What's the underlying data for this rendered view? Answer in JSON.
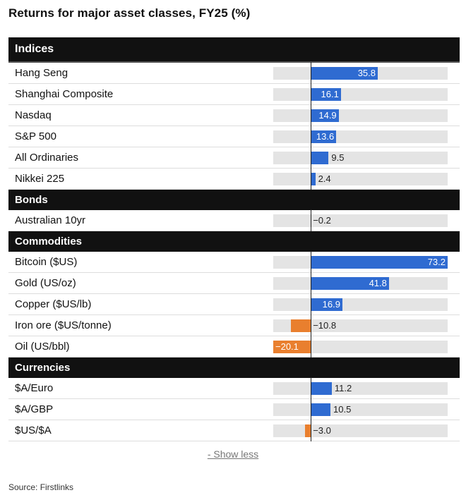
{
  "title": "Returns for major asset classes, FY25 (%)",
  "show_less": "- Show less",
  "source": "Source: Firstlinks",
  "colors": {
    "positive": "#2f6bd1",
    "negative": "#e97f2e",
    "header_bg": "#111111",
    "track": "#e4e4e4"
  },
  "chart_data": {
    "type": "bar",
    "orientation": "horizontal",
    "xlim": [
      -20.1,
      73.2
    ],
    "groups": [
      {
        "name": "Indices",
        "items": [
          {
            "label": "Hang Seng",
            "value": 35.8,
            "display": "35.8"
          },
          {
            "label": "Shanghai Composite",
            "value": 16.1,
            "display": "16.1"
          },
          {
            "label": "Nasdaq",
            "value": 14.9,
            "display": "14.9"
          },
          {
            "label": "S&P 500",
            "value": 13.6,
            "display": "13.6"
          },
          {
            "label": "All Ordinaries",
            "value": 9.5,
            "display": "9.5"
          },
          {
            "label": "Nikkei 225",
            "value": 2.4,
            "display": "2.4"
          }
        ]
      },
      {
        "name": "Bonds",
        "items": [
          {
            "label": "Australian 10yr",
            "value": -0.2,
            "display": "−0.2"
          }
        ]
      },
      {
        "name": "Commodities",
        "items": [
          {
            "label": "Bitcoin ($US)",
            "value": 73.2,
            "display": "73.2"
          },
          {
            "label": "Gold (US/oz)",
            "value": 41.8,
            "display": "41.8"
          },
          {
            "label": "Copper ($US/lb)",
            "value": 16.9,
            "display": "16.9"
          },
          {
            "label": "Iron ore ($US/tonne)",
            "value": -10.8,
            "display": "−10.8"
          },
          {
            "label": "Oil (US/bbl)",
            "value": -20.1,
            "display": "−20.1"
          }
        ]
      },
      {
        "name": "Currencies",
        "items": [
          {
            "label": "$A/Euro",
            "value": 11.2,
            "display": "11.2"
          },
          {
            "label": "$A/GBP",
            "value": 10.5,
            "display": "10.5"
          },
          {
            "label": "$US/$A",
            "value": -3.0,
            "display": "−3.0"
          }
        ]
      }
    ]
  }
}
